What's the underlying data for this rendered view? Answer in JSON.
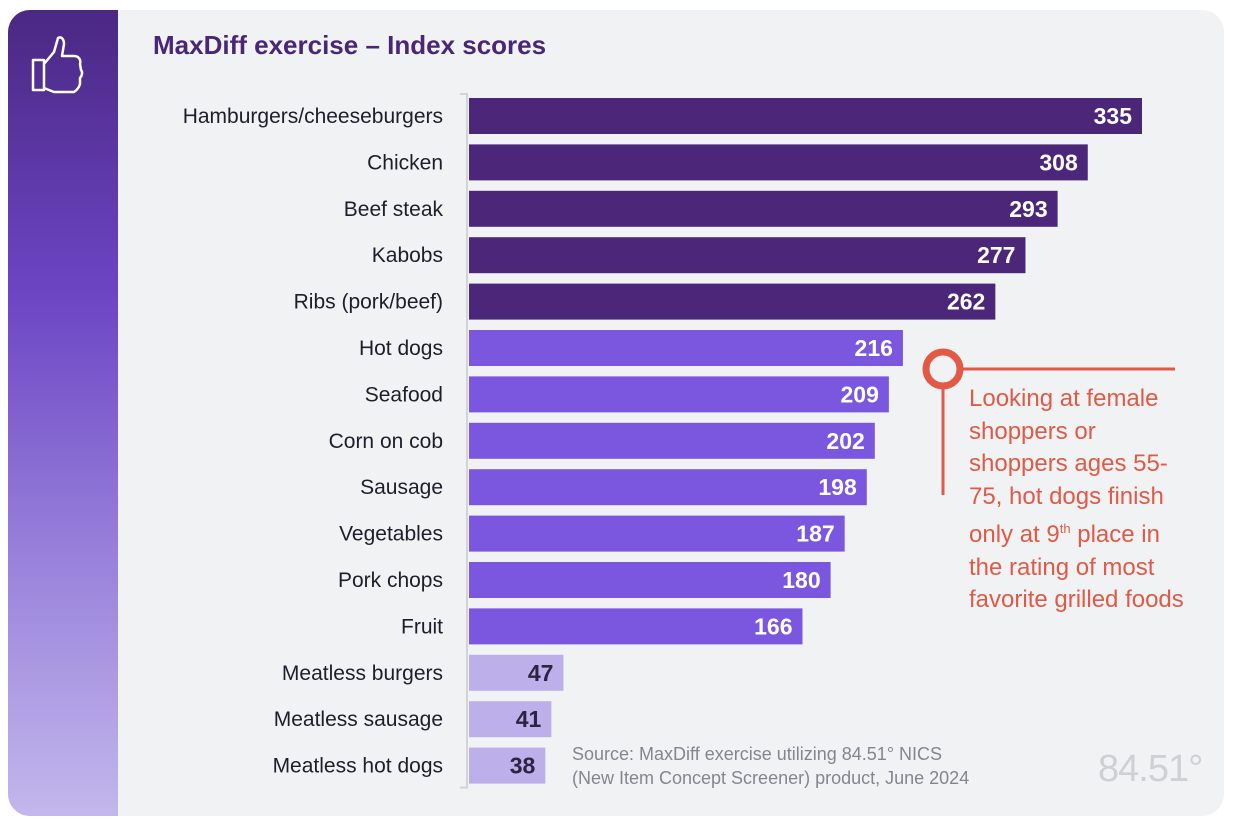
{
  "chart_data": {
    "type": "bar",
    "orientation": "horizontal",
    "title": "MaxDiff exercise – Index scores",
    "categories": [
      "Hamburgers/cheeseburgers",
      "Chicken",
      "Beef steak",
      "Kabobs",
      "Ribs (pork/beef)",
      "Hot dogs",
      "Seafood",
      "Corn on cob",
      "Sausage",
      "Vegetables",
      "Pork chops",
      "Fruit",
      "Meatless burgers",
      "Meatless sausage",
      "Meatless hot dogs"
    ],
    "values": [
      335,
      308,
      293,
      277,
      262,
      216,
      209,
      202,
      198,
      187,
      180,
      166,
      47,
      41,
      38
    ],
    "tiers": [
      "top",
      "top",
      "top",
      "top",
      "top",
      "mid",
      "mid",
      "mid",
      "mid",
      "mid",
      "mid",
      "mid",
      "low",
      "low",
      "low"
    ],
    "colors": {
      "top": "#4b2679",
      "mid": "#7b57e0",
      "low": "#bdb0ea",
      "title": "#4a2679",
      "annotation": "#e05a47"
    },
    "xlim": [
      0,
      335
    ],
    "grid": false,
    "data_labels": true
  },
  "annotation": {
    "line1": "Looking at female shoppers or shoppers ages 55-75, hot dogs finish only at 9",
    "sup": "th",
    "line2": " place in the rating of most favorite grilled foods"
  },
  "source": {
    "line1": "Source: MaxDiff exercise utilizing 84.51° NICS",
    "line2": "(New Item Concept Screener) product, June 2024"
  },
  "logo": "84.51°",
  "icon": "thumbs-up-icon"
}
